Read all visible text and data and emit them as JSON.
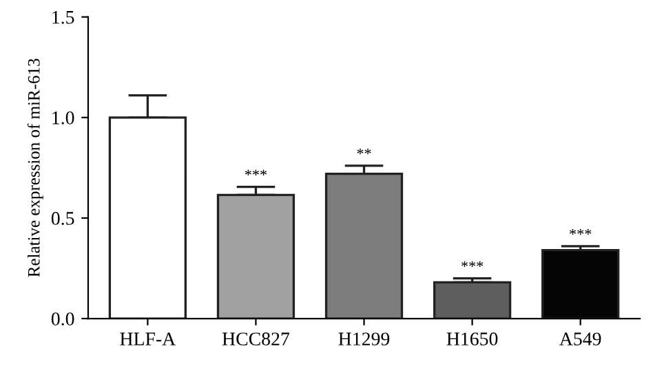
{
  "chart_data": {
    "type": "bar",
    "ylabel": "Relative expression of miR-613",
    "categories": [
      "HLF-A",
      "HCC827",
      "H1299",
      "H1650",
      "A549"
    ],
    "values": [
      1.0,
      0.615,
      0.72,
      0.18,
      0.34
    ],
    "errors": [
      [
        1.0,
        1.11
      ],
      [
        0.615,
        0.655
      ],
      [
        0.72,
        0.76
      ],
      [
        0.18,
        0.2
      ],
      [
        0.34,
        0.36
      ]
    ],
    "colors": [
      "#ffffff",
      "#a0a0a0",
      "#7c7c7c",
      "#5e5e5e",
      "#050505"
    ],
    "annotations": [
      {
        "text": "***",
        "x": "HCC827",
        "y": 0.655
      },
      {
        "text": "**",
        "x": "H1299",
        "y": 0.76
      },
      {
        "text": "***",
        "x": "H1650",
        "y": 0.2
      },
      {
        "text": "***",
        "x": "A549",
        "y": 0.36
      }
    ],
    "ylim": [
      0,
      1.5
    ],
    "yticks": [
      {
        "value": 0,
        "label": "0.0"
      },
      {
        "value": 0.5,
        "label": "0.5"
      },
      {
        "value": 1.0,
        "label": "1.0"
      },
      {
        "value": 1.5,
        "label": "1.5"
      }
    ],
    "grid": false
  }
}
